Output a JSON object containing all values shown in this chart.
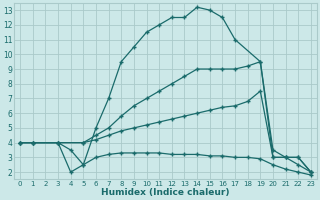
{
  "xlabel": "Humidex (Indice chaleur)",
  "bg_color": "#cce8e8",
  "grid_color": "#aacaca",
  "line_color": "#1a6b6b",
  "xlim": [
    -0.5,
    23.5
  ],
  "ylim": [
    1.5,
    13.5
  ],
  "xticks": [
    0,
    1,
    2,
    3,
    4,
    5,
    6,
    7,
    8,
    9,
    10,
    11,
    12,
    13,
    14,
    15,
    16,
    17,
    18,
    19,
    20,
    21,
    22,
    23
  ],
  "yticks": [
    2,
    3,
    4,
    5,
    6,
    7,
    8,
    9,
    10,
    11,
    12,
    13
  ],
  "series": [
    {
      "x": [
        0,
        1,
        3,
        4,
        5,
        6,
        7,
        8,
        9,
        10,
        11,
        12,
        13,
        14,
        15,
        16,
        17,
        19,
        20,
        21,
        22,
        23
      ],
      "y": [
        4,
        4,
        4,
        2,
        2.5,
        5,
        7,
        9.5,
        10.5,
        11.5,
        12.0,
        12.5,
        12.5,
        13.2,
        13.0,
        12.5,
        11.0,
        9.5,
        3.0,
        3.0,
        3.0,
        2.0
      ]
    },
    {
      "x": [
        0,
        1,
        3,
        5,
        6,
        7,
        8,
        9,
        10,
        11,
        12,
        13,
        14,
        15,
        16,
        17,
        18,
        19,
        20,
        21,
        22,
        23
      ],
      "y": [
        4,
        4,
        4,
        4,
        4.5,
        5.0,
        5.8,
        6.5,
        7.0,
        7.5,
        8.0,
        8.5,
        9.0,
        9.0,
        9.0,
        9.0,
        9.2,
        9.5,
        3.5,
        3.0,
        3.0,
        2.0
      ]
    },
    {
      "x": [
        0,
        1,
        3,
        5,
        6,
        7,
        8,
        9,
        10,
        11,
        12,
        13,
        14,
        15,
        16,
        17,
        18,
        19,
        20,
        21,
        22,
        23
      ],
      "y": [
        4,
        4,
        4,
        4,
        4.2,
        4.5,
        4.8,
        5.0,
        5.2,
        5.4,
        5.6,
        5.8,
        6.0,
        6.2,
        6.4,
        6.5,
        6.8,
        7.5,
        3.0,
        3.0,
        2.5,
        2.0
      ]
    },
    {
      "x": [
        0,
        1,
        3,
        4,
        5,
        6,
        7,
        8,
        9,
        10,
        11,
        12,
        13,
        14,
        15,
        16,
        17,
        18,
        19,
        20,
        21,
        22,
        23
      ],
      "y": [
        4,
        4,
        4,
        3.5,
        2.5,
        3.0,
        3.2,
        3.3,
        3.3,
        3.3,
        3.3,
        3.2,
        3.2,
        3.2,
        3.1,
        3.1,
        3.0,
        3.0,
        2.9,
        2.5,
        2.2,
        2.0,
        1.8
      ]
    }
  ]
}
